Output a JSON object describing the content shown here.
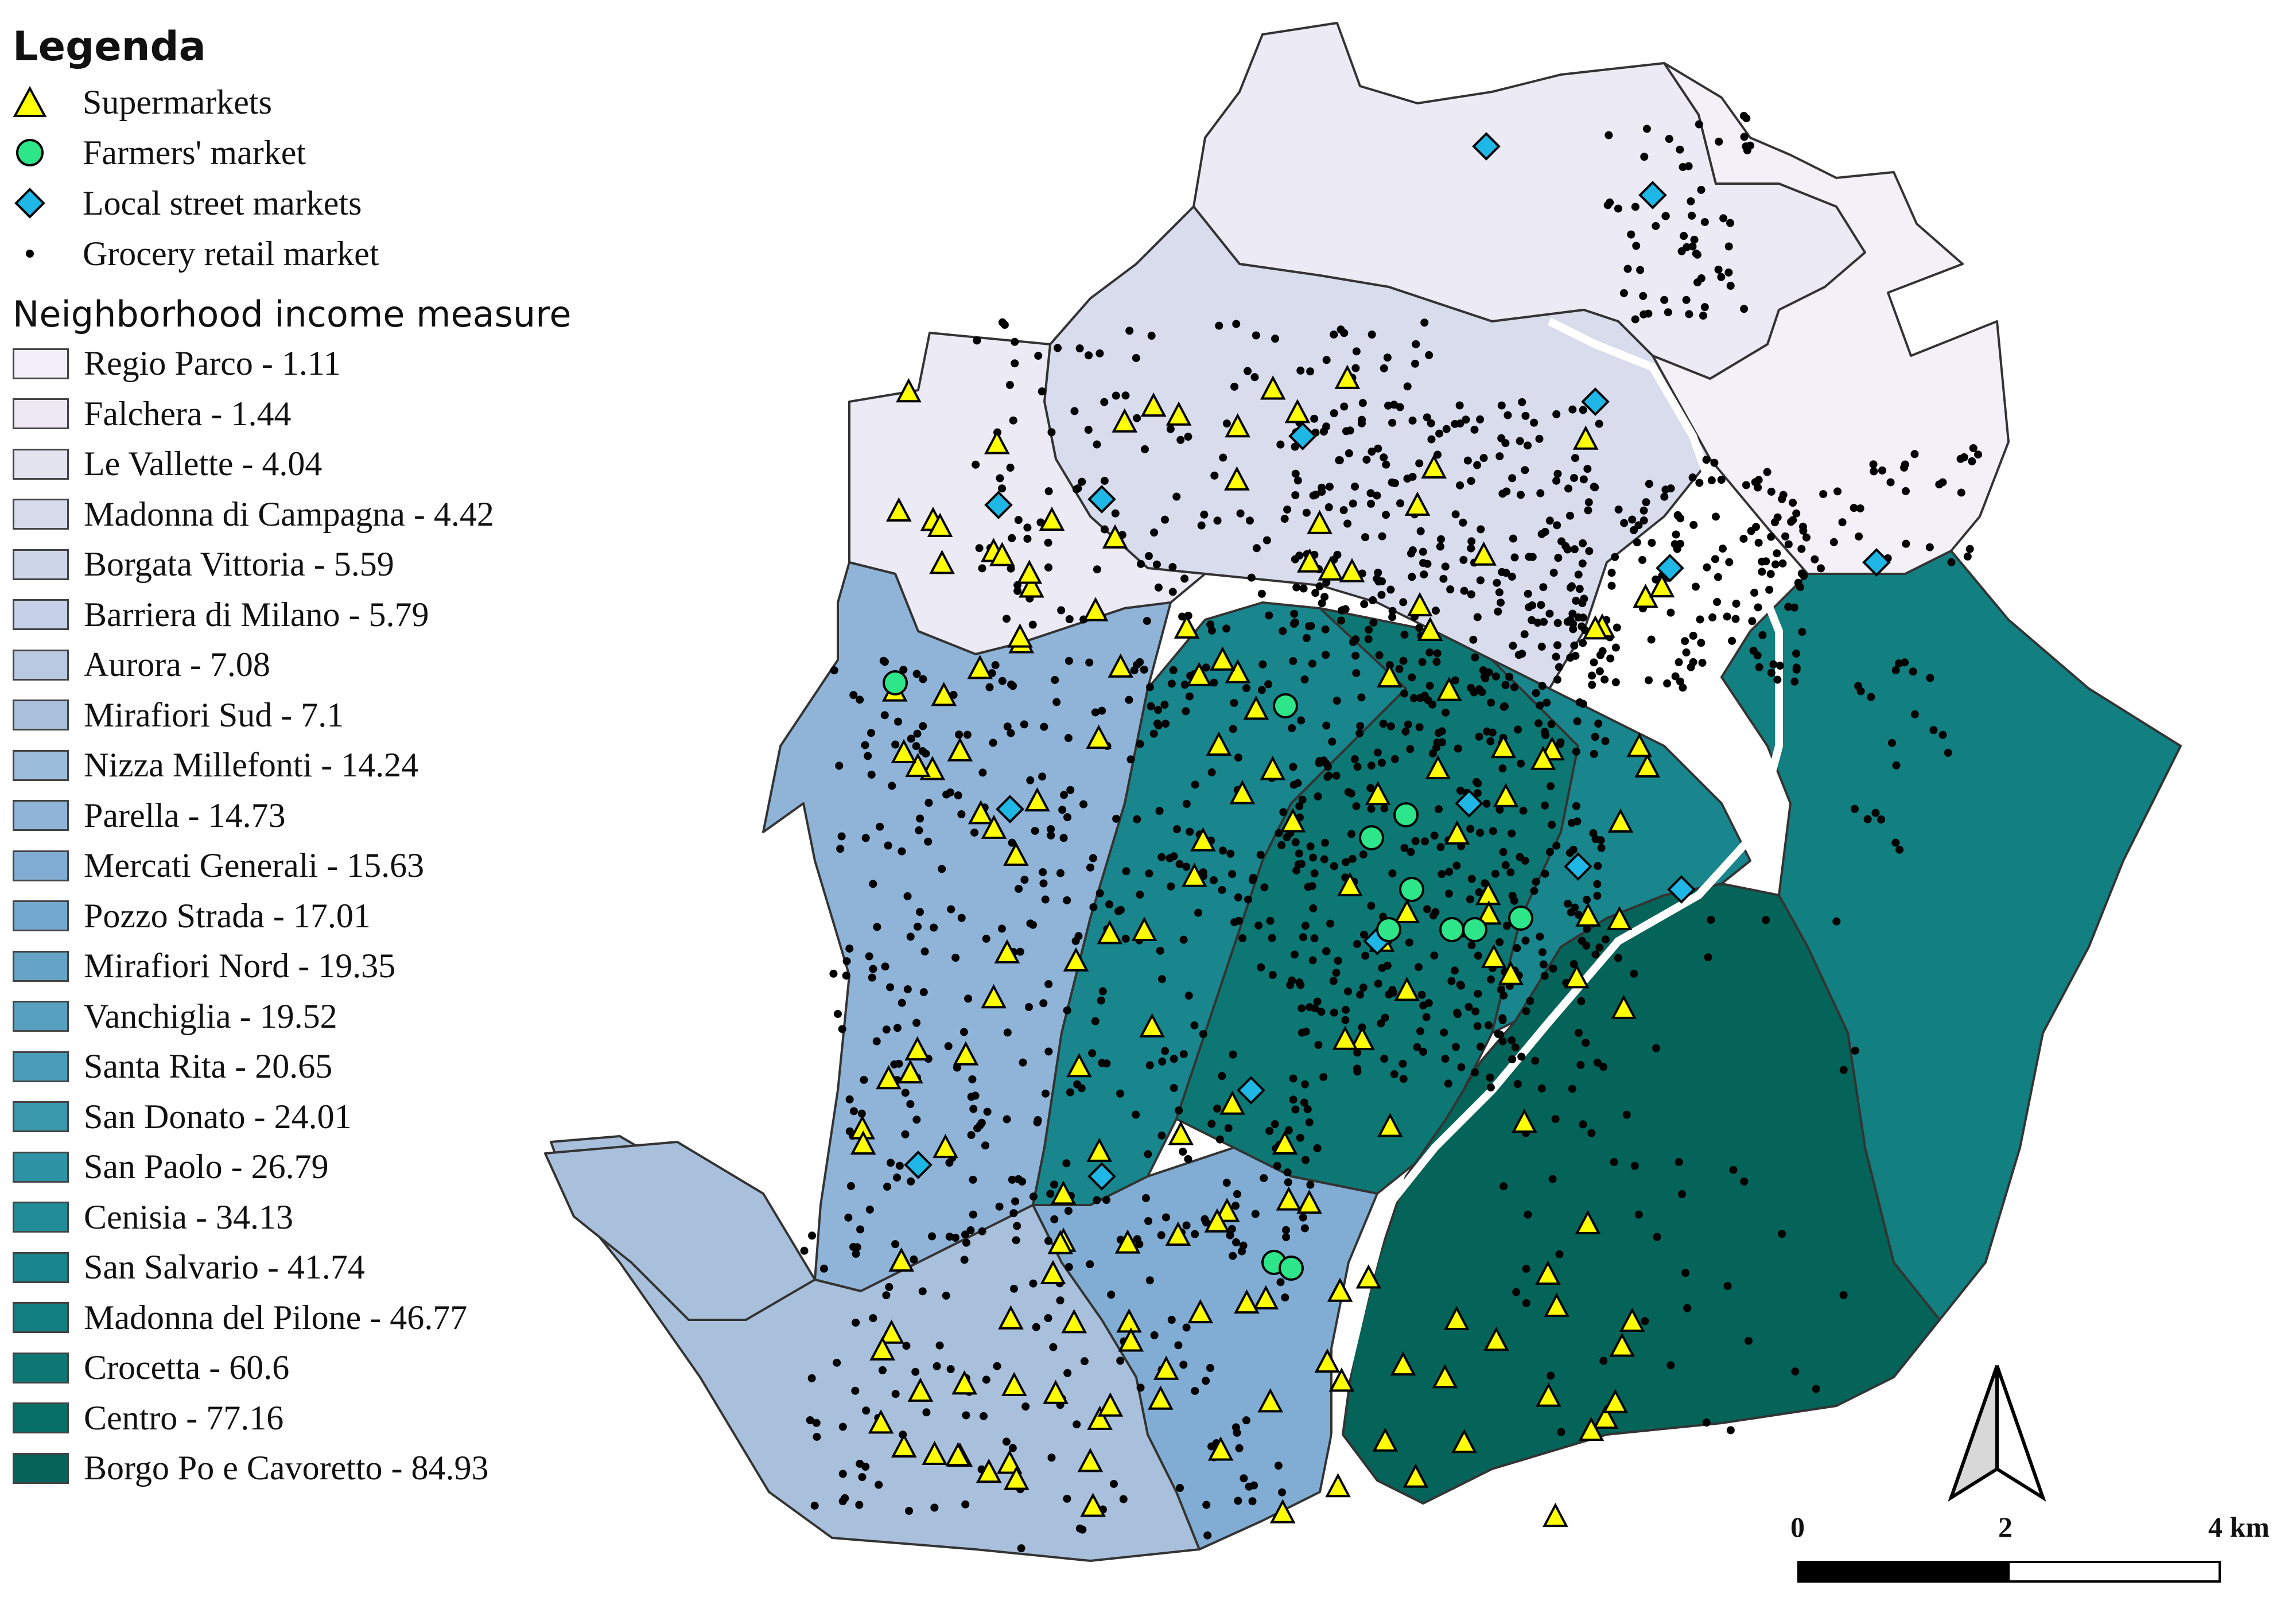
{
  "legend": {
    "title": "Legenda",
    "symbols": [
      {
        "label": "Supermarkets",
        "icon": "triangle-icon",
        "color": "#ffff00"
      },
      {
        "label": "Farmers' market",
        "icon": "circle-icon",
        "color": "#2ee68a"
      },
      {
        "label": "Local street markets",
        "icon": "diamond-icon",
        "color": "#1fb7e6"
      },
      {
        "label": "Grocery retail market",
        "icon": "dot-icon",
        "color": "#000000"
      }
    ],
    "income_heading": "Neighborhood income measure",
    "income_classes": [
      {
        "label": "Regio Parco - 1.11",
        "color": "#f3eff8"
      },
      {
        "label": "Falchera - 1.44",
        "color": "#ede9f4"
      },
      {
        "label": "Le Vallette - 4.04",
        "color": "#e4e4f0"
      },
      {
        "label": "Madonna di Campagna - 4.42",
        "color": "#d7dbeb"
      },
      {
        "label": "Borgata Vittoria - 5.59",
        "color": "#ced6e9"
      },
      {
        "label": "Barriera di Milano - 5.79",
        "color": "#c6d0e6"
      },
      {
        "label": "Aurora - 7.08",
        "color": "#b9c9e2"
      },
      {
        "label": "Mirafiori Sud - 7.1",
        "color": "#a9c0dc"
      },
      {
        "label": "Nizza Millefonti - 14.24",
        "color": "#9cbcdb"
      },
      {
        "label": "Parella - 14.73",
        "color": "#8fb4d8"
      },
      {
        "label": "Mercati Generali - 15.63",
        "color": "#81add4"
      },
      {
        "label": "Pozzo Strada - 17.01",
        "color": "#74a9cf"
      },
      {
        "label": "Mirafiori Nord - 19.35",
        "color": "#65a4c7"
      },
      {
        "label": "Vanchiglia - 19.52",
        "color": "#57a0c0"
      },
      {
        "label": "Santa Rita - 20.65",
        "color": "#4a9cb8"
      },
      {
        "label": "San Donato - 24.01",
        "color": "#3a98ad"
      },
      {
        "label": "San Paolo - 26.79",
        "color": "#2e93a4"
      },
      {
        "label": "Cenisia - 34.13",
        "color": "#228d98"
      },
      {
        "label": "San Salvario - 41.74",
        "color": "#18868c"
      },
      {
        "label": "Madonna del Pilone - 46.77",
        "color": "#127f80"
      },
      {
        "label": "Crocetta - 60.6",
        "color": "#0d7873"
      },
      {
        "label": "Centro - 77.16",
        "color": "#086f66"
      },
      {
        "label": "Borgo Po e Cavoretto - 84.93",
        "color": "#046459"
      }
    ]
  },
  "scalebar": {
    "labels": [
      "0",
      "2",
      "4 km"
    ]
  },
  "colors": {
    "north": "#eceaf4",
    "northeast": "#f3f0f8",
    "northmid": "#d8dcec",
    "west": "#8fb4d8",
    "westsouth": "#a9c0dc",
    "center": "#18868c",
    "core": "#0d7873",
    "eastlarge": "#127f80",
    "hill": "#046459",
    "south": "#81add4",
    "river": "#ffffff",
    "border": "#333333"
  }
}
